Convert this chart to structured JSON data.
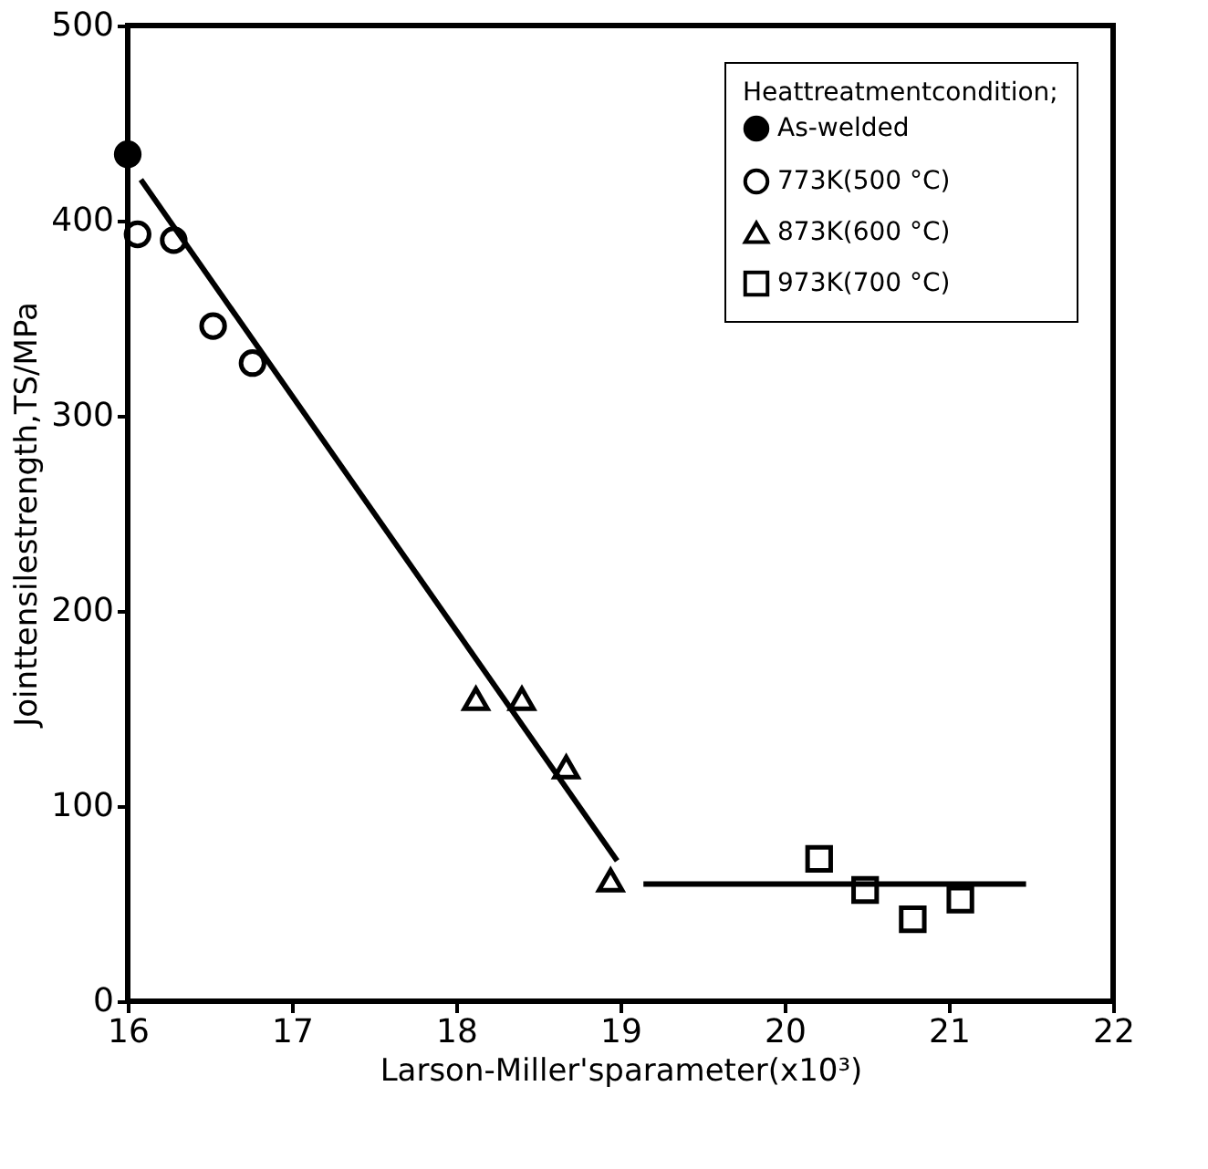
{
  "chart_data": {
    "type": "scatter",
    "xlabel": "Larson-Miller'sparameter(x10³)",
    "ylabel": "Jointtensilestrength,TS/MPa",
    "legend_title": "Heattreatmentcondition;",
    "legend": "top right",
    "xlim": [
      16,
      22
    ],
    "xticks": [
      16,
      17,
      18,
      19,
      20,
      21,
      22
    ],
    "ylim": [
      0,
      500
    ],
    "yticks": [
      0,
      100,
      200,
      300,
      400,
      500
    ],
    "grid": false,
    "series": [
      {
        "name": "As-welded",
        "color": "#000000",
        "marker": "circle",
        "x": [
          16.0
        ],
        "values": [
          434
        ]
      },
      {
        "name": "773K(500 °C)",
        "color": "#000000",
        "marker": "circle",
        "x": [
          16.06,
          16.28,
          16.52,
          16.76
        ],
        "values": [
          393,
          390,
          346,
          327
        ]
      },
      {
        "name": "873K(600 °C)",
        "color": "#000000",
        "marker": "triangle",
        "x": [
          18.12,
          18.4,
          18.67,
          18.94
        ],
        "values": [
          155,
          155,
          120,
          62
        ]
      },
      {
        "name": "973K(700 °C)",
        "color": "#000000",
        "marker": "square",
        "x": [
          20.21,
          20.49,
          20.78,
          21.07
        ],
        "values": [
          73,
          57,
          42,
          52
        ]
      },
      {
        "type": "line",
        "color": "#000000",
        "marker": "none",
        "x": [
          16.08,
          18.98
        ],
        "values": [
          421,
          72
        ]
      },
      {
        "type": "line",
        "color": "#000000",
        "marker": "none",
        "x": [
          19.14,
          21.47
        ],
        "values": [
          60,
          60
        ]
      }
    ]
  }
}
